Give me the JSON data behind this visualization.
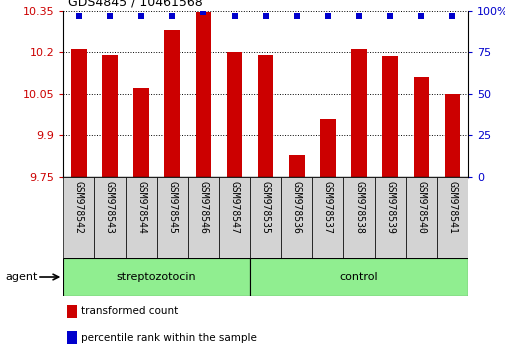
{
  "title": "GDS4845 / 10461568",
  "samples": [
    "GSM978542",
    "GSM978543",
    "GSM978544",
    "GSM978545",
    "GSM978546",
    "GSM978547",
    "GSM978535",
    "GSM978536",
    "GSM978537",
    "GSM978538",
    "GSM978539",
    "GSM978540",
    "GSM978541"
  ],
  "red_values": [
    10.21,
    10.19,
    10.07,
    10.28,
    10.345,
    10.2,
    10.19,
    9.83,
    9.96,
    10.21,
    10.185,
    10.11,
    10.05
  ],
  "blue_values": [
    97,
    97,
    97,
    97,
    99,
    97,
    97,
    97,
    97,
    97,
    97,
    97,
    97
  ],
  "ylim_left": [
    9.75,
    10.35
  ],
  "ylim_right": [
    0,
    100
  ],
  "yticks_left": [
    9.75,
    9.9,
    10.05,
    10.2,
    10.35
  ],
  "yticks_right": [
    0,
    25,
    50,
    75,
    100
  ],
  "ytick_labels_left": [
    "9.75",
    "9.9",
    "10.05",
    "10.2",
    "10.35"
  ],
  "ytick_labels_right": [
    "0",
    "25",
    "50",
    "75",
    "100%"
  ],
  "groups": [
    {
      "label": "streptozotocin",
      "start": 0,
      "end": 6
    },
    {
      "label": "control",
      "start": 6,
      "end": 13
    }
  ],
  "bar_color": "#cc0000",
  "dot_color": "#0000cc",
  "baseline": 9.75,
  "background_color": "#ffffff",
  "plot_bg": "#ffffff",
  "label_bg": "#d3d3d3",
  "group_bg": "#90EE90",
  "legend_items": [
    {
      "color": "#cc0000",
      "label": "transformed count"
    },
    {
      "color": "#0000cc",
      "label": "percentile rank within the sample"
    }
  ]
}
